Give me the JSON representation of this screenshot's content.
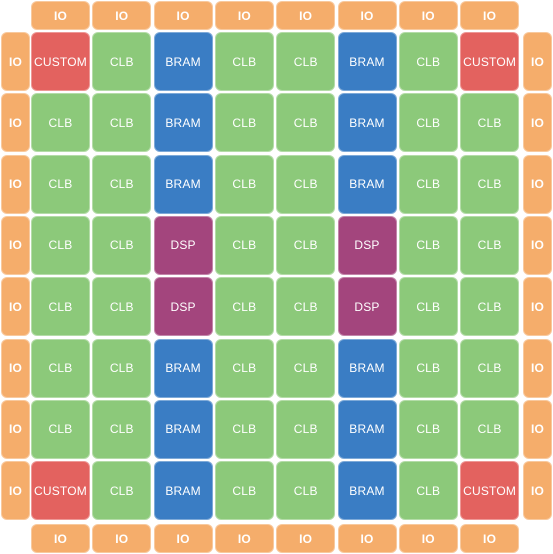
{
  "labels": {
    "io": "IO",
    "clb": "CLB",
    "bram": "BRAM",
    "dsp": "DSP",
    "custom": "CUSTOM"
  },
  "colors": {
    "io": "#f5ad6b",
    "clb": "#8cc97a",
    "bram": "#3a7dc4",
    "dsp": "#a3457d",
    "custom": "#e3625f"
  },
  "grid": [
    [
      "custom",
      "clb",
      "bram",
      "clb",
      "clb",
      "bram",
      "clb",
      "custom"
    ],
    [
      "clb",
      "clb",
      "bram",
      "clb",
      "clb",
      "bram",
      "clb",
      "clb"
    ],
    [
      "clb",
      "clb",
      "bram",
      "clb",
      "clb",
      "bram",
      "clb",
      "clb"
    ],
    [
      "clb",
      "clb",
      "dsp",
      "clb",
      "clb",
      "dsp",
      "clb",
      "clb"
    ],
    [
      "clb",
      "clb",
      "dsp",
      "clb",
      "clb",
      "dsp",
      "clb",
      "clb"
    ],
    [
      "clb",
      "clb",
      "bram",
      "clb",
      "clb",
      "bram",
      "clb",
      "clb"
    ],
    [
      "clb",
      "clb",
      "bram",
      "clb",
      "clb",
      "bram",
      "clb",
      "clb"
    ],
    [
      "custom",
      "clb",
      "bram",
      "clb",
      "clb",
      "bram",
      "clb",
      "custom"
    ]
  ],
  "io_per_side": 8
}
